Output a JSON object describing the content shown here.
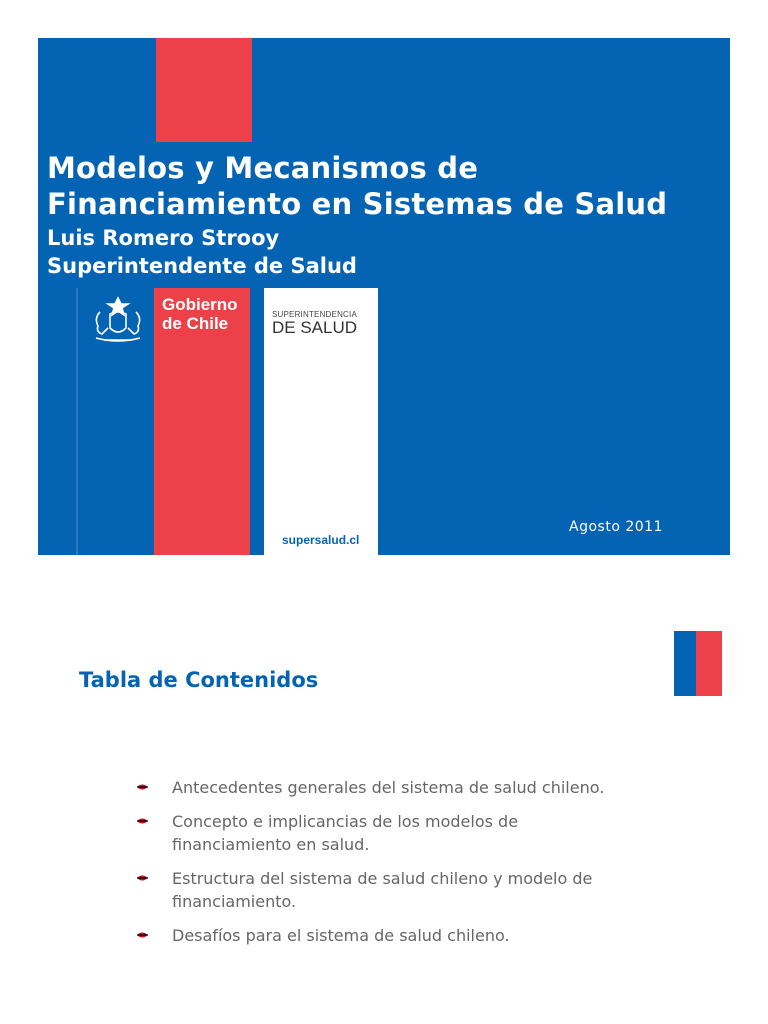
{
  "slide1": {
    "title_lines": [
      "Modelos y Mecanismos de",
      "Financiamiento en Sistemas de Salud"
    ],
    "author_lines": [
      "Luis Romero Strooy",
      "Superintendente de Salud"
    ],
    "government_logo": {
      "lines": [
        "Gobierno",
        "de Chile"
      ],
      "icon": "coat-of-arms-icon"
    },
    "superintendencia_logo": {
      "small": "SUPERINTENDENCIA",
      "big": "DE SALUD",
      "url": "supersalud.cl"
    },
    "date": "Agosto 2011",
    "colors": {
      "blue": "#0563b4",
      "red": "#ec4149",
      "white": "#ffffff"
    }
  },
  "slide2": {
    "title": "Tabla de Contenidos",
    "flag_icon": "chile-flag-icon",
    "bullet_icon": "arrow-bullet-icon",
    "items": [
      "Antecedentes generales del sistema de salud chileno.",
      "Concepto e implicancias de los modelos de financiamiento en salud.",
      "Estructura del sistema de salud chileno y modelo de financiamiento.",
      "Desafíos para el sistema de salud chileno."
    ],
    "colors": {
      "title": "#0563b4",
      "text": "#666666",
      "bullet": "#c8102e"
    }
  }
}
